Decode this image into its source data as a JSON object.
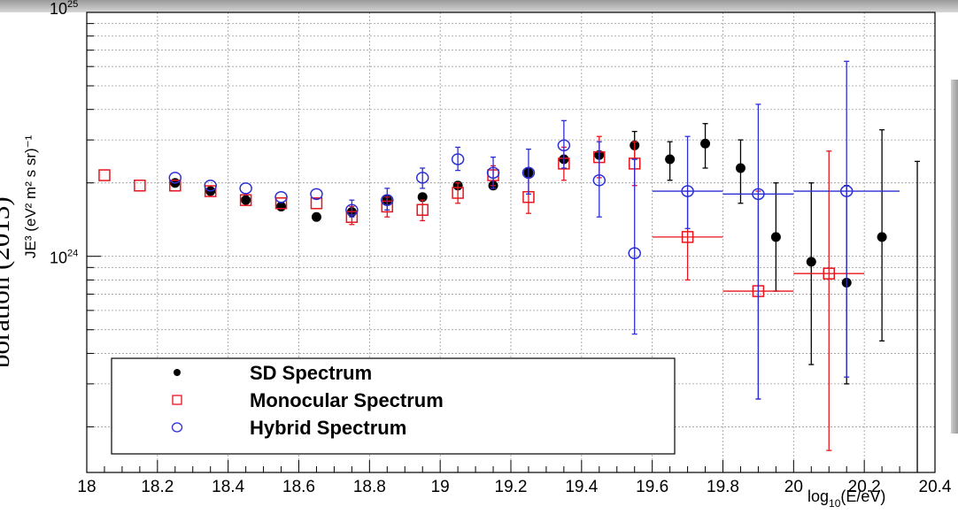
{
  "side_text": "boration (2013)",
  "chart_data": {
    "type": "scatter",
    "yscale": "log",
    "xlim": [
      18,
      20.4
    ],
    "ylim": [
      1.3e+23,
      1e+25
    ],
    "grid": true,
    "xlabel": {
      "prefix": "log",
      "sub": "10",
      "body": "(E/eV)"
    },
    "ylabel": "JE³ (eV² m² s sr)⁻¹",
    "xticks": [
      "18",
      "18.2",
      "18.4",
      "18.6",
      "18.8",
      "19",
      "19.2",
      "19.4",
      "19.6",
      "19.8",
      "20",
      "20.2",
      "20.4"
    ],
    "yticks": [
      {
        "value": 1e+24,
        "label": "10",
        "exp": "24"
      },
      {
        "value": 1e+25,
        "label": "10",
        "exp": "25"
      }
    ],
    "legend_position": "bottom-left",
    "series": [
      {
        "name": "SD Spectrum",
        "marker": "filled-circle",
        "color": "#000000",
        "points": [
          {
            "x": 18.25,
            "y": 2e+24
          },
          {
            "x": 18.35,
            "y": 1.85e+24
          },
          {
            "x": 18.45,
            "y": 1.7e+24
          },
          {
            "x": 18.55,
            "y": 1.6e+24
          },
          {
            "x": 18.65,
            "y": 1.45e+24
          },
          {
            "x": 18.75,
            "y": 1.52e+24
          },
          {
            "x": 18.85,
            "y": 1.7e+24
          },
          {
            "x": 18.95,
            "y": 1.75e+24
          },
          {
            "x": 19.05,
            "y": 1.95e+24
          },
          {
            "x": 19.15,
            "y": 1.95e+24
          },
          {
            "x": 19.25,
            "y": 2.2e+24
          },
          {
            "x": 19.35,
            "y": 2.5e+24
          },
          {
            "x": 19.45,
            "y": 2.6e+24
          },
          {
            "x": 19.55,
            "y": 2.85e+24,
            "ylo": 2.5e+24,
            "yhi": 3.25e+24
          },
          {
            "x": 19.65,
            "y": 2.5e+24,
            "ylo": 2.05e+24,
            "yhi": 2.95e+24
          },
          {
            "x": 19.75,
            "y": 2.9e+24,
            "ylo": 2.3e+24,
            "yhi": 3.5e+24
          },
          {
            "x": 19.85,
            "y": 2.3e+24,
            "ylo": 1.65e+24,
            "yhi": 3e+24
          },
          {
            "x": 19.95,
            "y": 1.2e+24,
            "ylo": 7.2e+23,
            "yhi": 2e+24
          },
          {
            "x": 20.05,
            "y": 9.5e+23,
            "ylo": 3.6e+23,
            "yhi": 2e+24
          },
          {
            "x": 20.15,
            "y": 7.8e+23,
            "ylo": 3e+23,
            "yhi": 1.95e+24
          },
          {
            "x": 20.25,
            "y": 1.2e+24,
            "ylo": 4.5e+23,
            "yhi": 3.3e+24
          },
          {
            "x": 20.35,
            "ylo": 1.3e+23,
            "yhi": 2.45e+24,
            "upper_limit": true
          }
        ]
      },
      {
        "name": "Monocular Spectrum",
        "marker": "open-square",
        "color": "#e8141c",
        "points": [
          {
            "x": 18.05,
            "y": 2.15e+24
          },
          {
            "x": 18.15,
            "y": 1.95e+24
          },
          {
            "x": 18.25,
            "y": 1.95e+24
          },
          {
            "x": 18.35,
            "y": 1.85e+24
          },
          {
            "x": 18.45,
            "y": 1.7e+24
          },
          {
            "x": 18.55,
            "y": 1.65e+24
          },
          {
            "x": 18.65,
            "y": 1.65e+24
          },
          {
            "x": 18.75,
            "y": 1.45e+24,
            "ylo": 1.35e+24,
            "yhi": 1.6e+24
          },
          {
            "x": 18.85,
            "y": 1.6e+24,
            "ylo": 1.45e+24,
            "yhi": 1.75e+24
          },
          {
            "x": 18.95,
            "y": 1.55e+24,
            "ylo": 1.4e+24,
            "yhi": 1.7e+24
          },
          {
            "x": 19.05,
            "y": 1.82e+24,
            "ylo": 1.65e+24,
            "yhi": 2e+24
          },
          {
            "x": 19.15,
            "y": 2.15e+24,
            "ylo": 1.95e+24,
            "yhi": 2.35e+24
          },
          {
            "x": 19.25,
            "y": 1.75e+24,
            "ylo": 1.5e+24,
            "yhi": 2.1e+24
          },
          {
            "x": 19.35,
            "y": 2.4e+24,
            "ylo": 2.05e+24,
            "yhi": 2.8e+24
          },
          {
            "x": 19.45,
            "y": 2.55e+24,
            "ylo": 2.1e+24,
            "yhi": 3.1e+24
          },
          {
            "x": 19.55,
            "y": 2.4e+24,
            "ylo": 1.95e+24,
            "yhi": 2.95e+24
          },
          {
            "x": 19.7,
            "y": 1.2e+24,
            "xlo": 19.6,
            "xhi": 19.8,
            "ylo": 8e+23,
            "yhi": 1.85e+24
          },
          {
            "x": 19.9,
            "y": 7.2e+23,
            "xlo": 19.8,
            "xhi": 20.0,
            "ylo": 2.6e+23,
            "yhi": 1.85e+24
          },
          {
            "x": 20.1,
            "y": 8.5e+23,
            "xlo": 20.0,
            "xhi": 20.2,
            "ylo": 1.6e+23,
            "yhi": 2.7e+24
          }
        ]
      },
      {
        "name": "Hybrid Spectrum",
        "marker": "open-circle",
        "color": "#2b2fd4",
        "points": [
          {
            "x": 18.25,
            "y": 2.1e+24
          },
          {
            "x": 18.35,
            "y": 1.95e+24
          },
          {
            "x": 18.45,
            "y": 1.9e+24
          },
          {
            "x": 18.55,
            "y": 1.75e+24
          },
          {
            "x": 18.65,
            "y": 1.8e+24
          },
          {
            "x": 18.75,
            "y": 1.55e+24,
            "ylo": 1.45e+24,
            "yhi": 1.7e+24
          },
          {
            "x": 18.85,
            "y": 1.7e+24,
            "ylo": 1.55e+24,
            "yhi": 1.9e+24
          },
          {
            "x": 18.95,
            "y": 2.1e+24,
            "ylo": 1.9e+24,
            "yhi": 2.3e+24
          },
          {
            "x": 19.05,
            "y": 2.5e+24,
            "ylo": 2.25e+24,
            "yhi": 2.8e+24
          },
          {
            "x": 19.15,
            "y": 2.2e+24,
            "ylo": 1.9e+24,
            "yhi": 2.55e+24
          },
          {
            "x": 19.25,
            "y": 2.2e+24,
            "ylo": 1.8e+24,
            "yhi": 2.75e+24
          },
          {
            "x": 19.35,
            "y": 2.85e+24,
            "ylo": 2.3e+24,
            "yhi": 3.6e+24
          },
          {
            "x": 19.45,
            "y": 2.05e+24,
            "ylo": 1.45e+24,
            "yhi": 2.95e+24
          },
          {
            "x": 19.55,
            "y": 1.03e+24,
            "ylo": 4.8e+23,
            "yhi": 2.5e+24
          },
          {
            "x": 19.7,
            "y": 1.85e+24,
            "xlo": 19.6,
            "xhi": 19.8,
            "ylo": 1.3e+24,
            "yhi": 3.1e+24
          },
          {
            "x": 19.9,
            "y": 1.8e+24,
            "xlo": 19.8,
            "xhi": 20.0,
            "ylo": 2.6e+23,
            "yhi": 4.2e+24
          },
          {
            "x": 20.15,
            "y": 1.85e+24,
            "xlo": 20.0,
            "xhi": 20.3,
            "ylo": 3.2e+23,
            "yhi": 6.3e+24
          }
        ]
      }
    ]
  }
}
